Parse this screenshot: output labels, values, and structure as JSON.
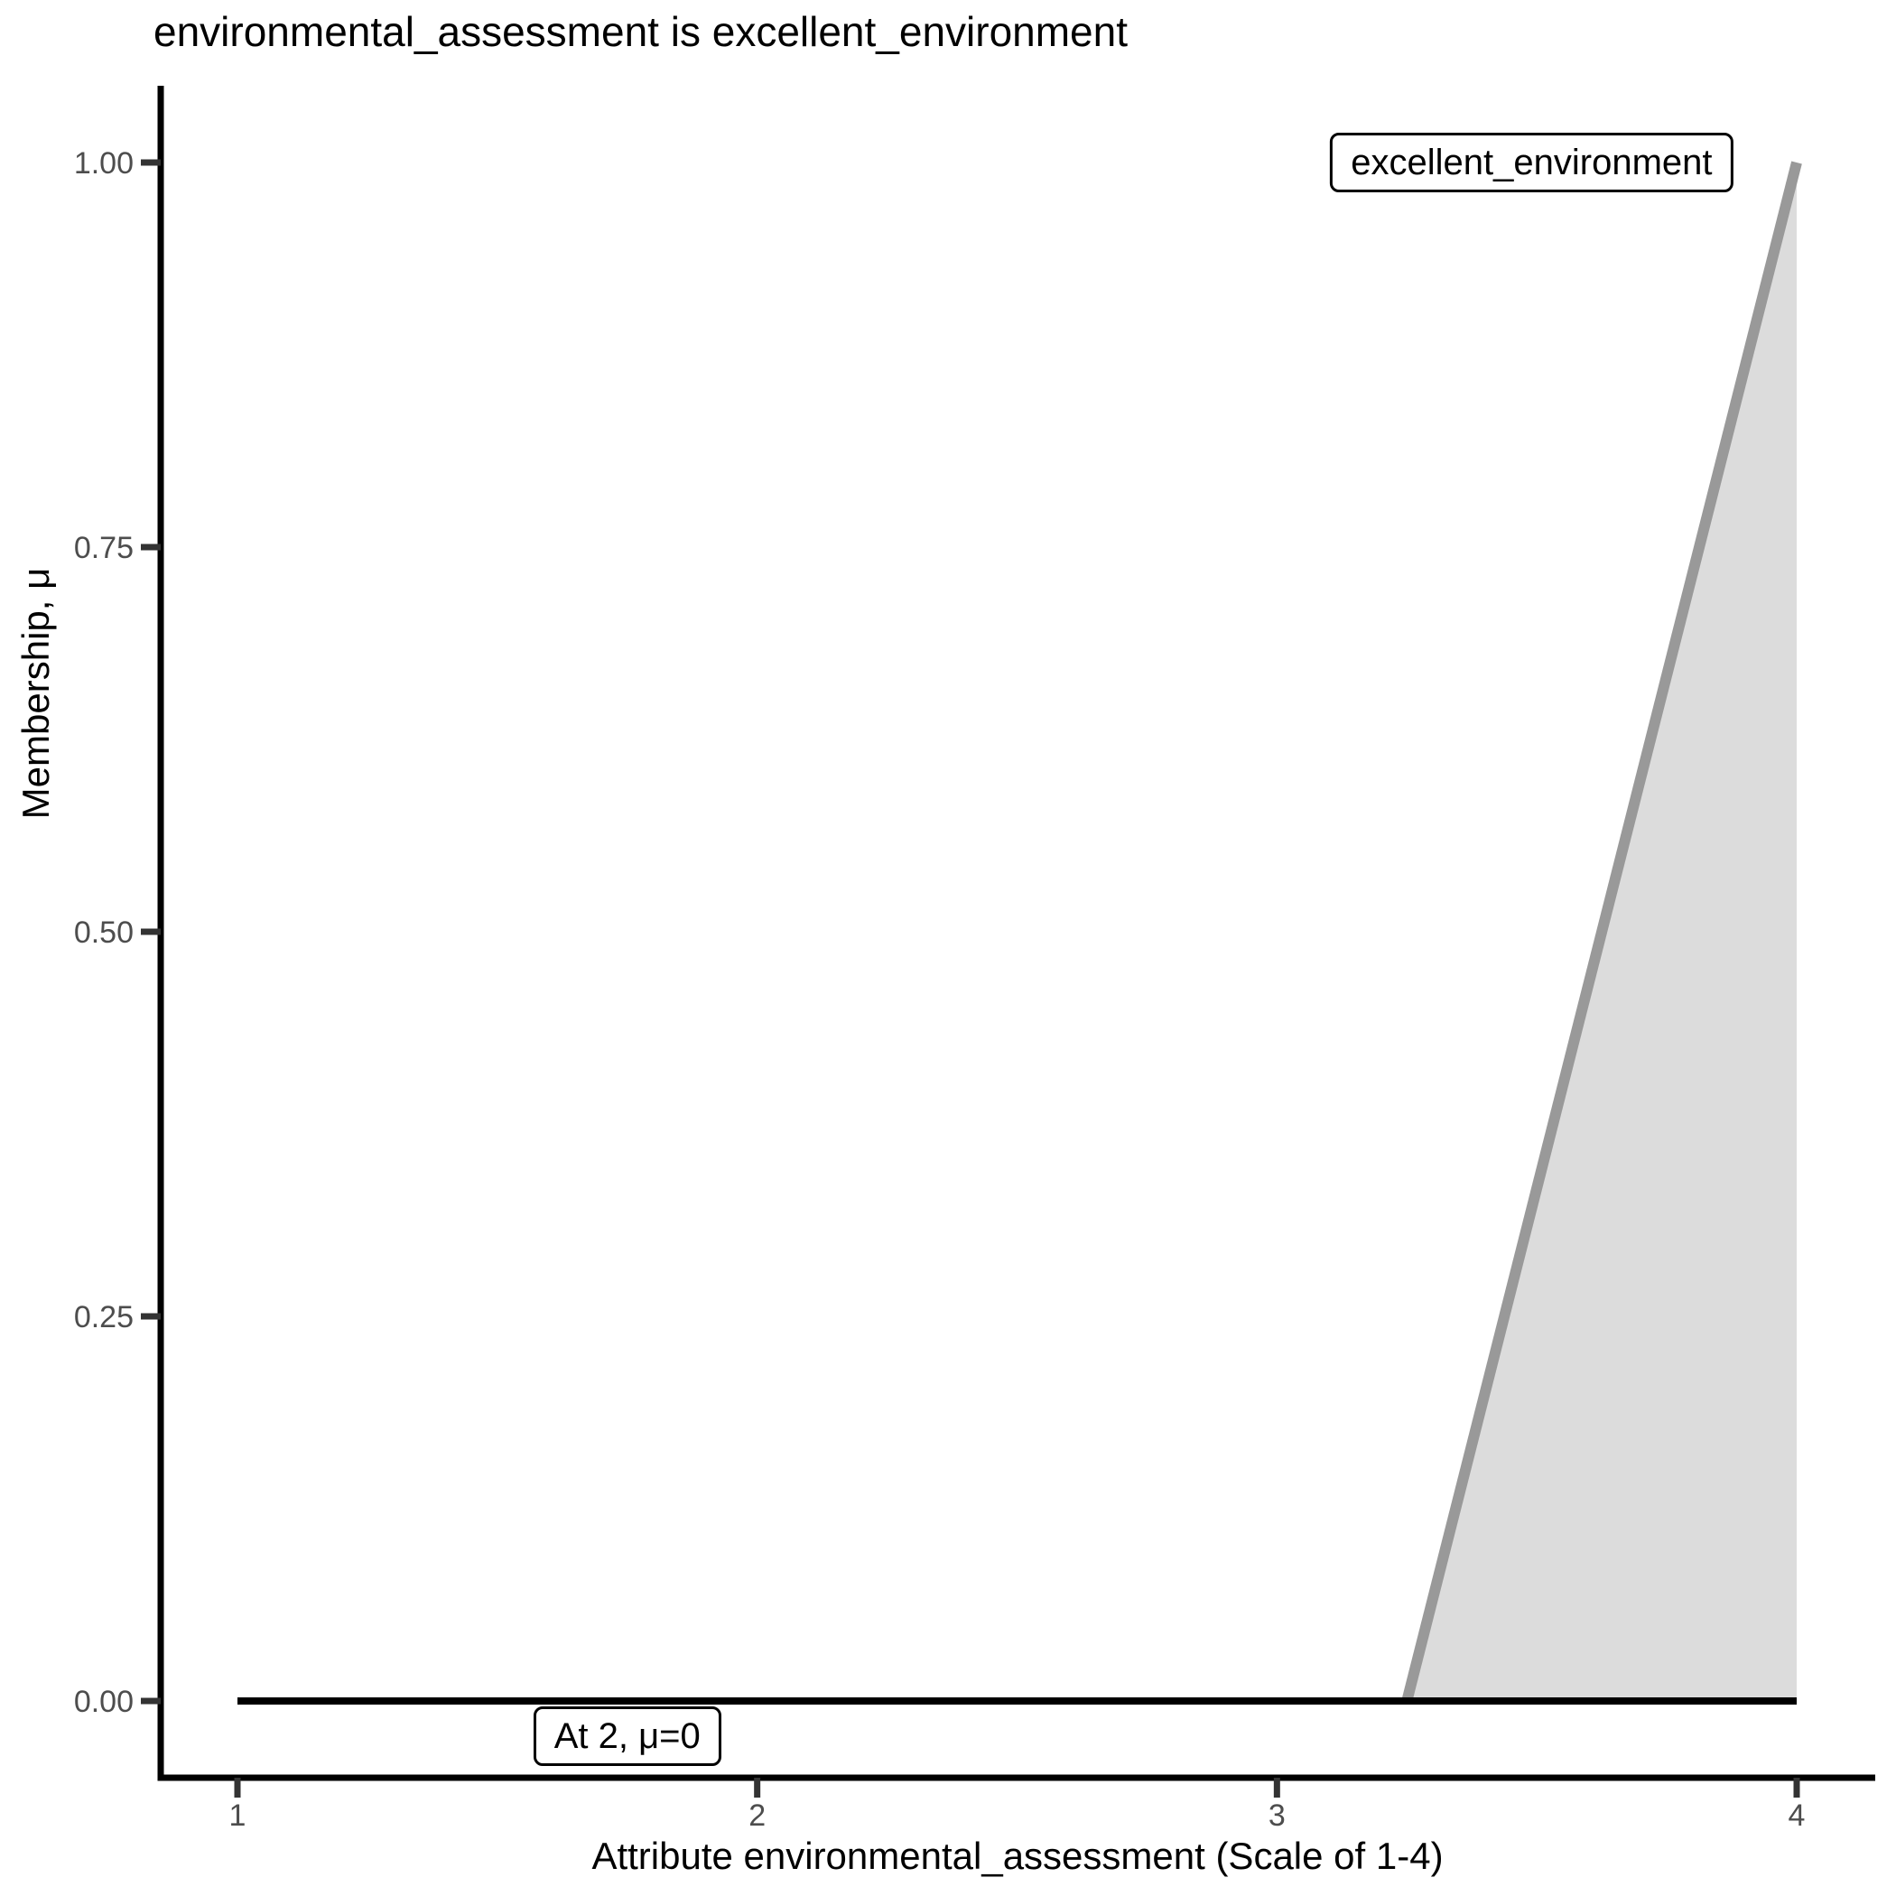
{
  "chart_data": {
    "type": "area",
    "title": "environmental_assessment is excellent_environment",
    "xlabel": "Attribute environmental_assessment (Scale of 1-4)",
    "ylabel": "Membership, μ",
    "xlim": [
      1,
      4
    ],
    "ylim": [
      0,
      1
    ],
    "grid": false,
    "legend_position": "none",
    "x_ticks": [
      {
        "v": 1,
        "label": "1"
      },
      {
        "v": 2,
        "label": "2"
      },
      {
        "v": 3,
        "label": "3"
      },
      {
        "v": 4,
        "label": "4"
      }
    ],
    "y_ticks": [
      {
        "v": 0,
        "label": "0.00"
      },
      {
        "v": 0.25,
        "label": "0.25"
      },
      {
        "v": 0.5,
        "label": "0.50"
      },
      {
        "v": 0.75,
        "label": "0.75"
      },
      {
        "v": 1,
        "label": "1.00"
      }
    ],
    "series": [
      {
        "name": "excellent_environment",
        "type": "membership-ramp",
        "points": [
          [
            3.25,
            0
          ],
          [
            4,
            1
          ]
        ],
        "fill_to_zero": true,
        "line_color": "#999999",
        "line_width": 12,
        "fill_color": "#DCDCDC"
      }
    ],
    "baseline": {
      "points": [
        [
          1,
          0
        ],
        [
          4,
          0
        ]
      ],
      "color": "#000000",
      "line_width": 8
    },
    "annotations": [
      {
        "text": "excellent_environment",
        "x": 3.49,
        "y": 1.0
      },
      {
        "text": "At 2, μ=0",
        "x": 1.75,
        "y": -0.023
      }
    ],
    "colors": {
      "axis": "#000000",
      "tick": "#333333",
      "tick_label": "#4D4D4D",
      "text": "#000000",
      "background": "#FFFFFF"
    }
  }
}
